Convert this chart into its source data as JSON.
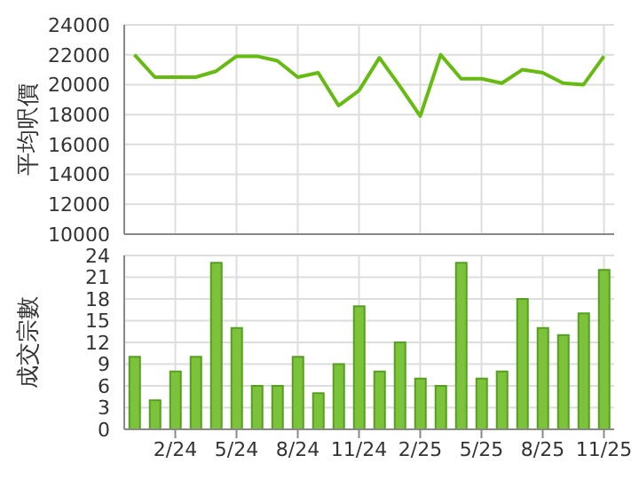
{
  "chart_data": [
    {
      "type": "line",
      "ylabel": "平均呎價",
      "categories": [
        null,
        null,
        null,
        null,
        null,
        null,
        null,
        null,
        null,
        null,
        null,
        null,
        null,
        null,
        null,
        null,
        null,
        null,
        null,
        null,
        null,
        null,
        null,
        null
      ],
      "series": [
        {
          "color": "#66bb11",
          "values": [
            22000,
            20500,
            20500,
            20500,
            20900,
            21900,
            21900,
            21600,
            20500,
            20800,
            18600,
            19600,
            21800,
            19900,
            17900,
            22000,
            20400,
            20400,
            20100,
            21000,
            20800,
            20100,
            20000,
            21900
          ]
        }
      ],
      "ylim": [
        10000,
        24000
      ],
      "yticks": [
        10000,
        12000,
        14000,
        16000,
        18000,
        20000,
        22000,
        24000
      ],
      "grid": true,
      "tick_labels": "y",
      "marker": "none"
    },
    {
      "type": "bar",
      "ylabel": "成交宗數",
      "categories": [
        null,
        null,
        "2/24",
        null,
        null,
        "5/24",
        null,
        null,
        "8/24",
        null,
        null,
        "11/24",
        null,
        null,
        "2/25",
        null,
        null,
        "5/25",
        null,
        null,
        "8/25",
        null,
        null,
        "11/25"
      ],
      "series": [
        {
          "color": "#7cc23a",
          "values": [
            10,
            4,
            8,
            10,
            23,
            14,
            6,
            6,
            10,
            5,
            9,
            17,
            8,
            12,
            7,
            6,
            23,
            7,
            8,
            18,
            14,
            13,
            16,
            22
          ]
        }
      ],
      "ylim": [
        0,
        24
      ],
      "yticks": [
        0,
        3,
        6,
        9,
        12,
        15,
        18,
        21,
        24
      ],
      "grid": true
    }
  ]
}
